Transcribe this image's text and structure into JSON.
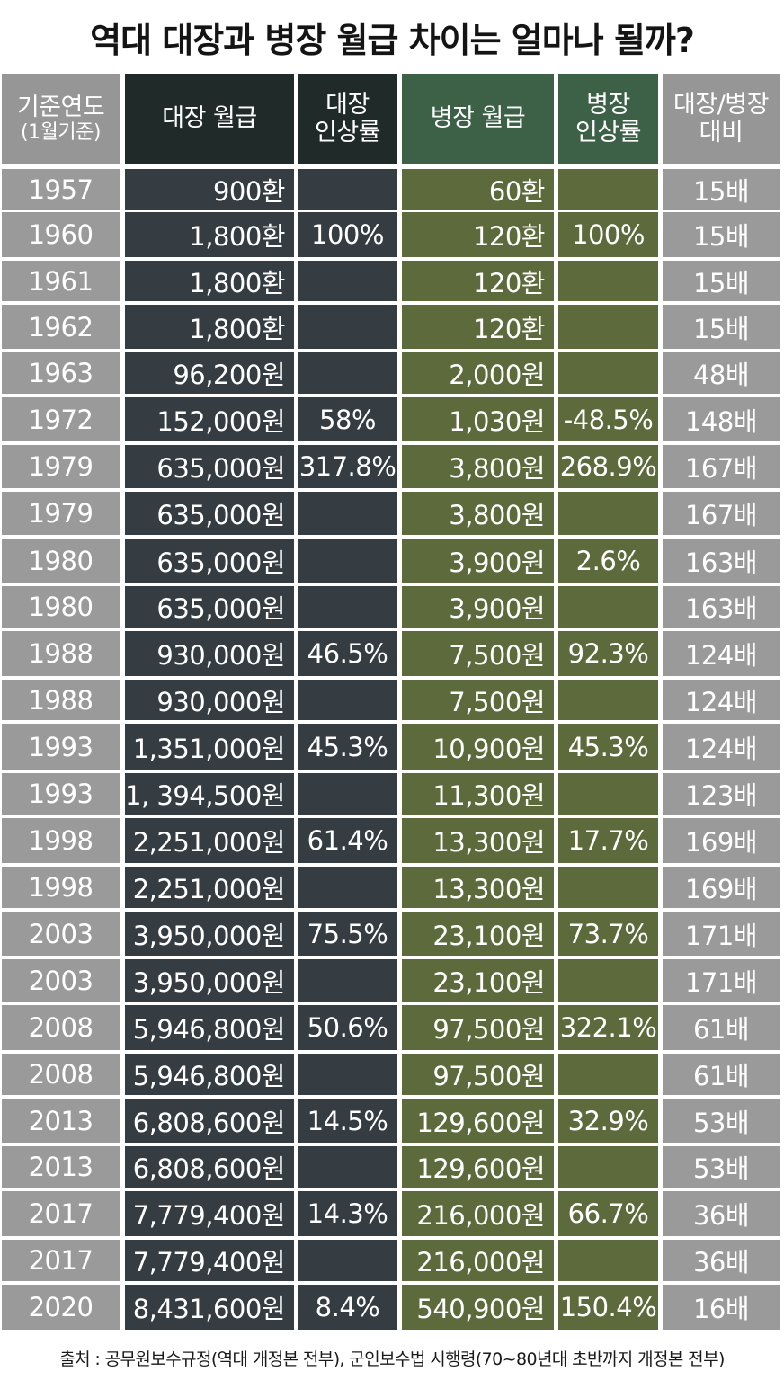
{
  "title": "역대 대장과 병장 월급 차이는 얼마나 될까?",
  "source": "출처 : 공무원보수규정(역대 개정본 전부), 군인보수법 시행령(70~80년대 초반까지 개정본 전부)",
  "colors": {
    "year_col": "#9a9a9a",
    "general_col": "#353c42",
    "general_header": "#1f2a29",
    "private_col": "#5d6a3c",
    "private_header": "#3c6147",
    "ratio_col": "#9a9a9a"
  },
  "chart_data": {
    "type": "table",
    "title": "역대 대장과 병장 월급 차이는 얼마나 될까?",
    "columns": [
      {
        "line1": "기준연도",
        "line2": "(1월기준)"
      },
      {
        "line1": "대장 월급",
        "line2": ""
      },
      {
        "line1": "대장",
        "line2": "인상률"
      },
      {
        "line1": "병장 월급",
        "line2": ""
      },
      {
        "line1": "병장",
        "line2": "인상률"
      },
      {
        "line1": "대장/병장",
        "line2": "대비"
      }
    ],
    "rows": [
      [
        "1957",
        "900환",
        "",
        "60환",
        "",
        "15배"
      ],
      [
        "1960",
        "1,800환",
        "100%",
        "120환",
        "100%",
        "15배"
      ],
      [
        "1961",
        "1,800환",
        "",
        "120환",
        "",
        "15배"
      ],
      [
        "1962",
        "1,800환",
        "",
        "120환",
        "",
        "15배"
      ],
      [
        "1963",
        "96,200원",
        "",
        "2,000원",
        "",
        "48배"
      ],
      [
        "1972",
        "152,000원",
        "58%",
        "1,030원",
        "-48.5%",
        "148배"
      ],
      [
        "1979",
        "635,000원",
        "317.8%",
        "3,800원",
        "268.9%",
        "167배"
      ],
      [
        "1979",
        "635,000원",
        "",
        "3,800원",
        "",
        "167배"
      ],
      [
        "1980",
        "635,000원",
        "",
        "3,900원",
        "2.6%",
        "163배"
      ],
      [
        "1980",
        "635,000원",
        "",
        "3,900원",
        "",
        "163배"
      ],
      [
        "1988",
        "930,000원",
        "46.5%",
        "7,500원",
        "92.3%",
        "124배"
      ],
      [
        "1988",
        "930,000원",
        "",
        "7,500원",
        "",
        "124배"
      ],
      [
        "1993",
        "1,351,000원",
        "45.3%",
        "10,900원",
        "45.3%",
        "124배"
      ],
      [
        "1993",
        "1, 394,500원",
        "",
        "11,300원",
        "",
        "123배"
      ],
      [
        "1998",
        "2,251,000원",
        "61.4%",
        "13,300원",
        "17.7%",
        "169배"
      ],
      [
        "1998",
        "2,251,000원",
        "",
        "13,300원",
        "",
        "169배"
      ],
      [
        "2003",
        "3,950,000원",
        "75.5%",
        "23,100원",
        "73.7%",
        "171배"
      ],
      [
        "2003",
        "3,950,000원",
        "",
        "23,100원",
        "",
        "171배"
      ],
      [
        "2008",
        "5,946,800원",
        "50.6%",
        "97,500원",
        "322.1%",
        "61배"
      ],
      [
        "2008",
        "5,946,800원",
        "",
        "97,500원",
        "",
        "61배"
      ],
      [
        "2013",
        "6,808,600원",
        "14.5%",
        "129,600원",
        "32.9%",
        "53배"
      ],
      [
        "2013",
        "6,808,600원",
        "",
        "129,600원",
        "",
        "53배"
      ],
      [
        "2017",
        "7,779,400원",
        "14.3%",
        "216,000원",
        "66.7%",
        "36배"
      ],
      [
        "2017",
        "7,779,400원",
        "",
        "216,000원",
        "",
        "36배"
      ],
      [
        "2020",
        "8,431,600원",
        "8.4%",
        "540,900원",
        "150.4%",
        "16배"
      ]
    ]
  }
}
